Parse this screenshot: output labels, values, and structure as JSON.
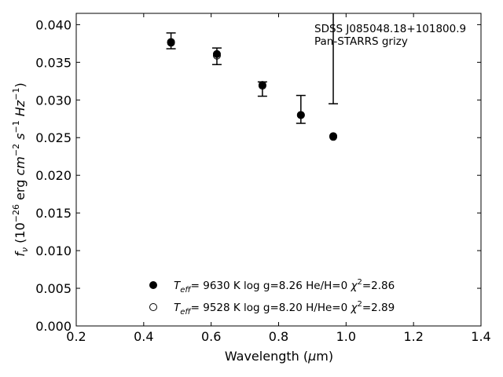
{
  "chart_data": {
    "type": "scatter",
    "xlabel": {
      "main": "Wavelength (",
      "mu": "μ",
      "unit": "m)"
    },
    "ylabel": {
      "f": "f",
      "nu": "ν",
      "pre": " (10",
      "exp26": "−26",
      "erg": " erg ",
      "cm": "cm",
      "exp2": "−2",
      "s": " s",
      "exp1": "−1",
      "hz": " Hz",
      "exp1b": "−1",
      "post": ")"
    },
    "xlim": [
      0.2,
      1.4
    ],
    "ylim": [
      0.0,
      0.0415
    ],
    "xticks": [
      0.2,
      0.4,
      0.6,
      0.8,
      1.0,
      1.2,
      1.4
    ],
    "xtick_labels": [
      "0.2",
      "0.4",
      "0.6",
      "0.8",
      "1.0",
      "1.2",
      "1.4"
    ],
    "yticks": [
      0.0,
      0.005,
      0.01,
      0.015,
      0.02,
      0.025,
      0.03,
      0.035,
      0.04
    ],
    "ytick_labels": [
      "0.000",
      "0.005",
      "0.010",
      "0.015",
      "0.020",
      "0.025",
      "0.030",
      "0.035",
      "0.040"
    ],
    "grid": false,
    "annotations": [
      "SDSS J085048.18+101800.9",
      "Pan-STARRS grizy"
    ],
    "observed": {
      "x": [
        0.481,
        0.617,
        0.752,
        0.866,
        0.962
      ],
      "y": [
        0.0378,
        0.0358,
        0.0318,
        0.0281,
        0.0252
      ],
      "err_low": [
        0.0368,
        0.0347,
        0.0305,
        0.0269,
        0.0295
      ],
      "err_high": [
        0.0389,
        0.0369,
        0.0324,
        0.0306,
        0.0415
      ]
    },
    "series": [
      {
        "marker": "filled",
        "x": [
          0.481,
          0.617,
          0.752,
          0.866,
          0.962
        ],
        "y": [
          0.0376,
          0.0361,
          0.032,
          0.028,
          0.0252
        ],
        "label": {
          "teff": "T",
          "eff": "eff",
          "rest": "=  9630 K  log g=8.26  He/H=0  ",
          "chi": "χ",
          "two": "2",
          "val": "=2.86"
        }
      },
      {
        "marker": "open",
        "x": [
          0.481,
          0.617,
          0.752,
          0.866,
          0.962
        ],
        "y": [
          0.0377,
          0.0359,
          0.0319,
          0.028,
          0.0251
        ],
        "label": {
          "teff": "T",
          "eff": "eff",
          "rest": "=  9528 K  log g=8.20  H/He=0  ",
          "chi": "χ",
          "two": "2",
          "val": "=2.89"
        }
      }
    ],
    "legend_position": "lower-center"
  }
}
